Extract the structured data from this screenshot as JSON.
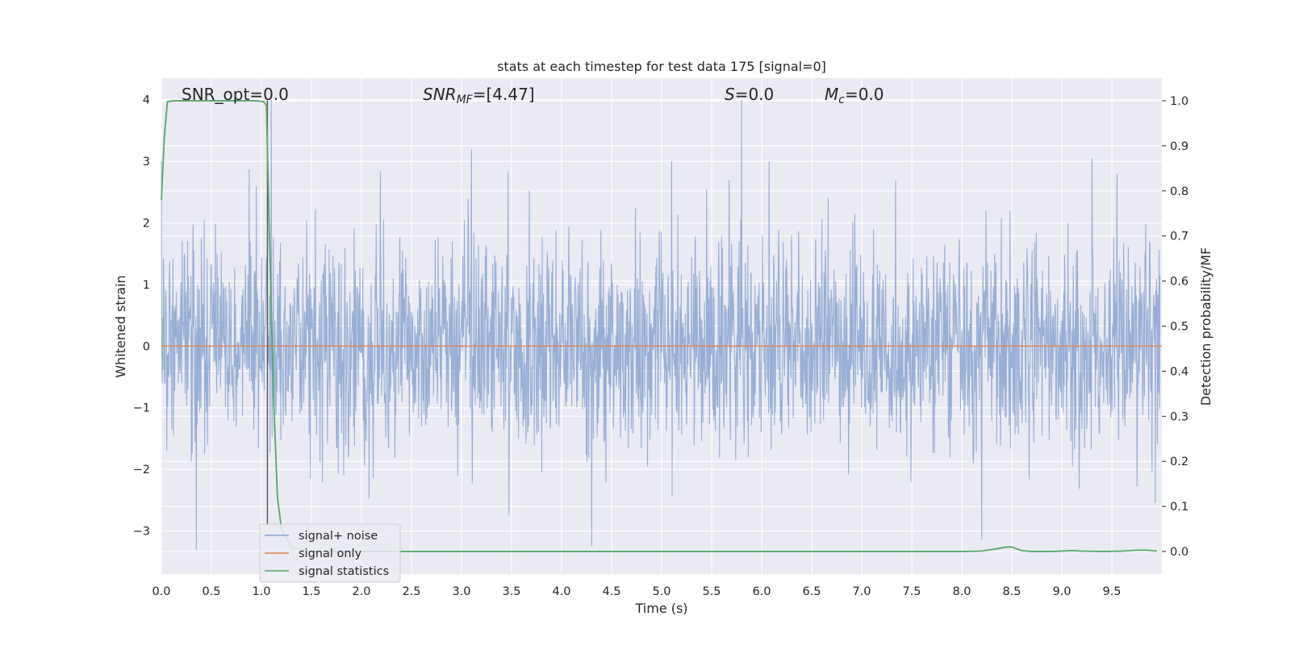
{
  "chart_data": {
    "type": "line",
    "title": "stats at each timestep for test data 175 [signal=0]",
    "xlabel": "Time (s)",
    "ylabel_left": "Whitened strain",
    "ylabel_right": "Detection probability/MF",
    "xlim": [
      0.0,
      10.0
    ],
    "ylim_left": [
      -3.7,
      4.35
    ],
    "ylim_right": [
      -0.05,
      1.05
    ],
    "x_ticks": [
      "0.0",
      "0.5",
      "1.0",
      "1.5",
      "2.0",
      "2.5",
      "3.0",
      "3.5",
      "4.0",
      "4.5",
      "5.0",
      "5.5",
      "6.0",
      "6.5",
      "7.0",
      "7.5",
      "8.0",
      "8.5",
      "9.0",
      "9.5"
    ],
    "y_left_ticks": [
      "4",
      "3",
      "2",
      "1",
      "0",
      "−1",
      "−2",
      "−3"
    ],
    "y_right_ticks": [
      "1.0",
      "0.9",
      "0.8",
      "0.7",
      "0.6",
      "0.5",
      "0.4",
      "0.3",
      "0.2",
      "0.1",
      "0.0"
    ],
    "grid": true,
    "legend_position": "lower-left",
    "annotations": {
      "snr_opt": "SNR_opt=0.0",
      "snr_mf": "=[4.47]",
      "snr_mf_symbol": "SNR",
      "snr_mf_sub": "MF",
      "s_value": "=0.0",
      "s_symbol": "S",
      "mc_value": "=0.0",
      "mc_symbol": "M",
      "mc_sub": "c"
    },
    "series": [
      {
        "name": "signal+ noise",
        "axis": "left",
        "color": "#8fa7d1",
        "description_values": "whitened noise strain, roughly Gaussian, range about −3.3 to 4.0",
        "peaks": [
          [
            0.35,
            -3.3
          ],
          [
            0.95,
            2.6
          ],
          [
            1.1,
            4.0
          ],
          [
            3.1,
            3.2
          ],
          [
            4.3,
            -3.25
          ],
          [
            5.1,
            3.0
          ],
          [
            5.8,
            4.0
          ],
          [
            8.2,
            -3.15
          ],
          [
            9.3,
            3.05
          ],
          [
            9.55,
            2.8
          ]
        ]
      },
      {
        "name": "signal only",
        "axis": "left",
        "color": "#dd8452",
        "x": [
          0.0,
          10.0
        ],
        "y": [
          0.0,
          0.0
        ]
      },
      {
        "name": "signal statistics",
        "axis": "right",
        "color": "#55a868",
        "x": [
          0.0,
          0.03,
          0.06,
          0.12,
          0.2,
          0.4,
          0.6,
          0.8,
          0.95,
          1.02,
          1.05,
          1.08,
          1.12,
          1.16,
          1.2,
          1.3,
          1.5,
          2.0,
          3.0,
          4.0,
          5.0,
          6.0,
          7.0,
          8.0,
          8.2,
          8.35,
          8.45,
          8.5,
          8.55,
          8.6,
          8.7,
          8.9,
          9.1,
          9.2,
          9.4,
          9.6,
          9.75,
          9.85,
          9.95
        ],
        "y": [
          0.78,
          0.92,
          0.998,
          1.0,
          1.0,
          1.0,
          1.0,
          1.0,
          1.0,
          0.998,
          0.99,
          0.7,
          0.35,
          0.12,
          0.05,
          0.01,
          0.0,
          0.0,
          0.0,
          0.0,
          0.0,
          0.0,
          0.0,
          0.0,
          0.001,
          0.006,
          0.01,
          0.01,
          0.006,
          0.002,
          0.0,
          0.0,
          0.002,
          0.001,
          0.0,
          0.001,
          0.003,
          0.003,
          0.001
        ]
      }
    ],
    "markers": [
      {
        "name": "signal marker",
        "x": 1.06,
        "color": "#555555"
      }
    ]
  }
}
